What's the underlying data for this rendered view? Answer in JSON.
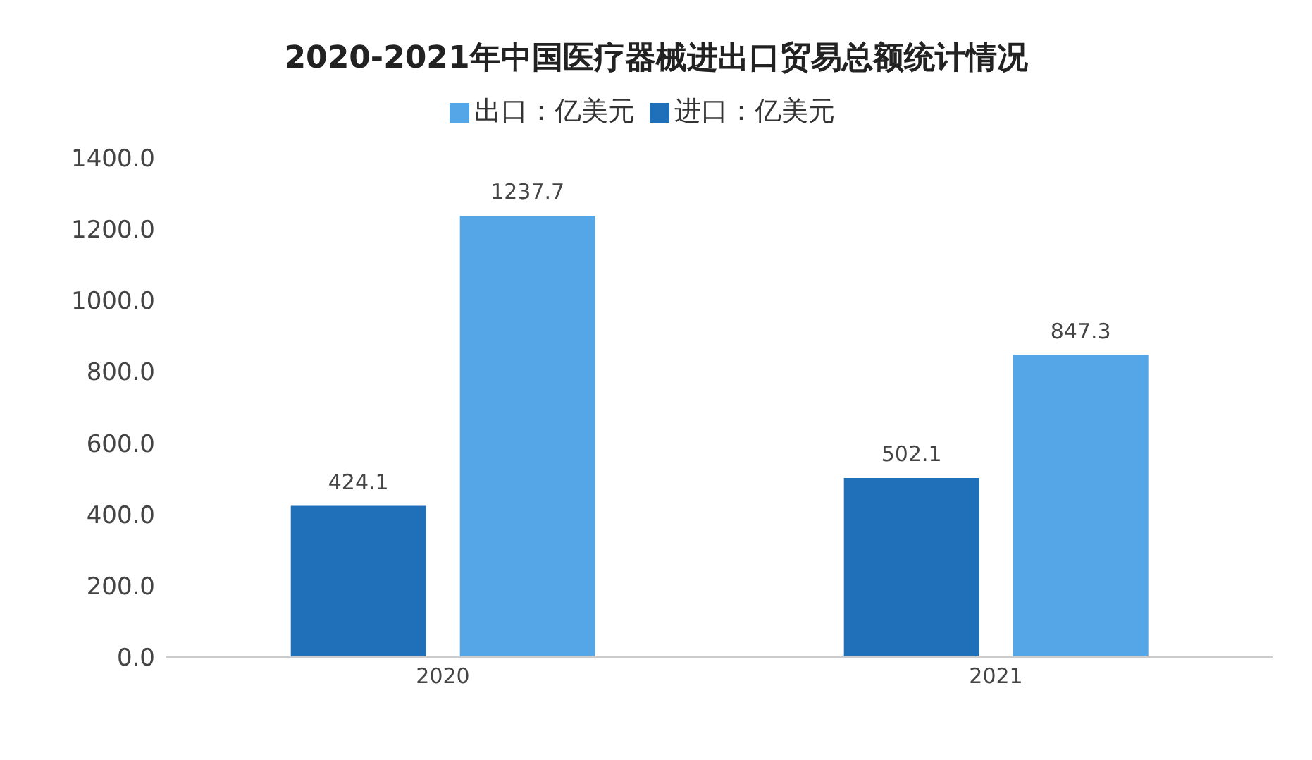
{
  "chart_data": {
    "type": "bar",
    "title": "2020-2021年中国医疗器械进出口贸易总额统计情况",
    "categories": [
      "2020",
      "2021"
    ],
    "series": [
      {
        "name": "进口：亿美元",
        "color": "#1f70b8",
        "values": [
          424.1,
          502.1
        ]
      },
      {
        "name": "出口：亿美元",
        "color": "#55a6e6",
        "values": [
          1237.7,
          847.3
        ]
      }
    ],
    "ylim": [
      0,
      1400
    ],
    "yticks": [
      {
        "value": 0,
        "label": "0.0"
      },
      {
        "value": 200,
        "label": "200.0"
      },
      {
        "value": 400,
        "label": "400.0"
      },
      {
        "value": 600,
        "label": "600.0"
      },
      {
        "value": 800,
        "label": "800.0"
      },
      {
        "value": 1000,
        "label": "1000.0"
      },
      {
        "value": 1200,
        "label": "1200.0"
      },
      {
        "value": 1400,
        "label": "1400.0"
      }
    ],
    "data_labels": true,
    "legend": "top",
    "grid": false
  }
}
